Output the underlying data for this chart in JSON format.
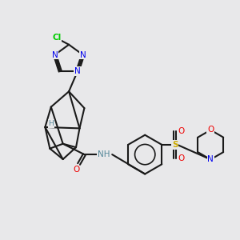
{
  "background_color": "#e8e8ea",
  "figure_size": [
    3.0,
    3.0
  ],
  "dpi": 100,
  "bond_color": "#1a1a1a",
  "bond_width": 1.5,
  "atom_colors": {
    "N": "#0000ee",
    "O": "#ee0000",
    "S": "#ccaa00",
    "Cl": "#00cc00",
    "H": "#558899",
    "C": "#1a1a1a"
  },
  "font_size": 7.5,
  "font_size_small": 6.5,
  "font_size_cl": 7.5
}
